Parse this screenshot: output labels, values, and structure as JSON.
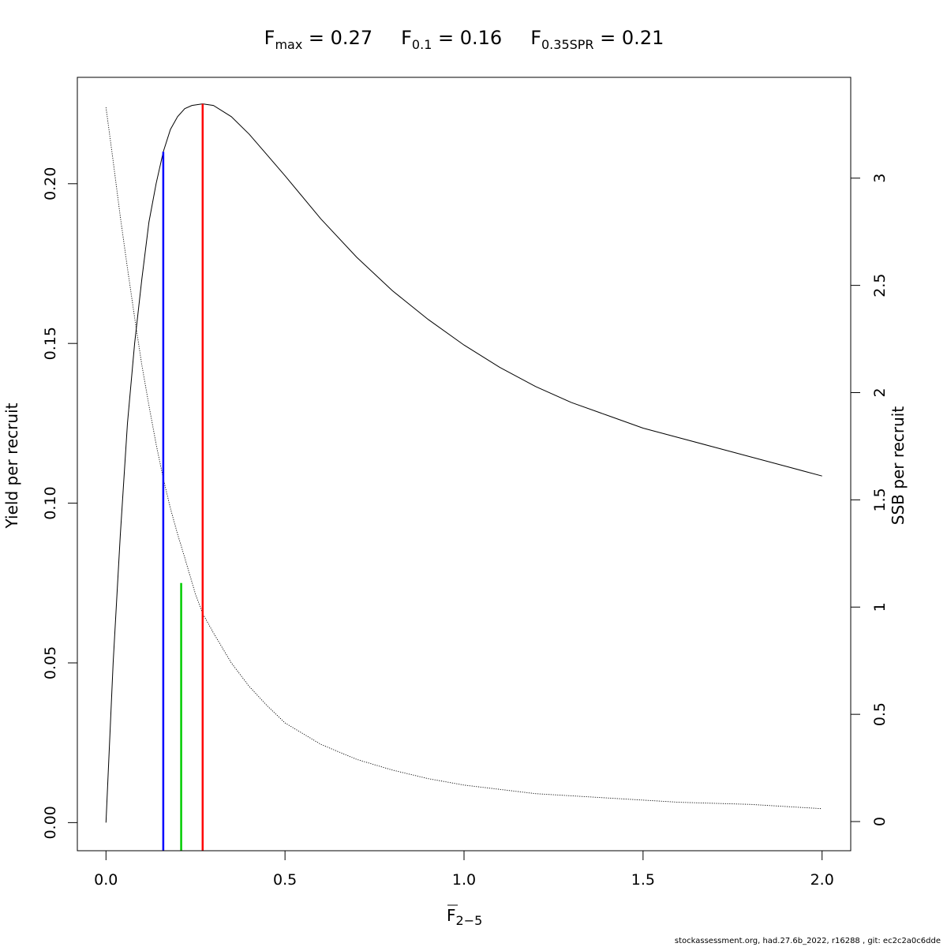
{
  "chart_data": {
    "type": "line",
    "title_parts": [
      {
        "main": "F",
        "sub": "max",
        "value": "= 0.27"
      },
      {
        "main": "F",
        "sub": "0.1",
        "value": "= 0.16"
      },
      {
        "main": "F",
        "sub": "0.35SPR",
        "value": "= 0.21"
      }
    ],
    "xlabel": {
      "main": "F",
      "sub": "2−5",
      "overline": true
    },
    "ylabel_left": "Yield per recruit",
    "ylabel_right": "SSB per recruit",
    "xlim": [
      -0.08,
      2.08
    ],
    "ylim_left": [
      -0.0088,
      0.2333
    ],
    "ylim_right": [
      -0.136,
      3.47
    ],
    "x_ticks": [
      {
        "value": 0.0,
        "label": "0.0"
      },
      {
        "value": 0.5,
        "label": "0.5"
      },
      {
        "value": 1.0,
        "label": "1.0"
      },
      {
        "value": 1.5,
        "label": "1.5"
      },
      {
        "value": 2.0,
        "label": "2.0"
      }
    ],
    "y_left_ticks": [
      {
        "value": 0.0,
        "label": "0.00"
      },
      {
        "value": 0.05,
        "label": "0.05"
      },
      {
        "value": 0.1,
        "label": "0.10"
      },
      {
        "value": 0.15,
        "label": "0.15"
      },
      {
        "value": 0.2,
        "label": "0.20"
      }
    ],
    "y_right_ticks": [
      {
        "value": 0,
        "label": "0"
      },
      {
        "value": 0.5,
        "label": "0.5"
      },
      {
        "value": 1,
        "label": "1"
      },
      {
        "value": 1.5,
        "label": "1.5"
      },
      {
        "value": 2,
        "label": "2"
      },
      {
        "value": 2.5,
        "label": "2.5"
      },
      {
        "value": 3,
        "label": "3"
      }
    ],
    "series": [
      {
        "axis": "left",
        "style": "solid",
        "color": "#000000",
        "x": [
          0.0,
          0.02,
          0.04,
          0.06,
          0.08,
          0.1,
          0.12,
          0.14,
          0.16,
          0.18,
          0.2,
          0.22,
          0.24,
          0.27,
          0.3,
          0.35,
          0.4,
          0.45,
          0.5,
          0.6,
          0.7,
          0.8,
          0.9,
          1.0,
          1.1,
          1.2,
          1.3,
          1.4,
          1.5,
          1.6,
          1.7,
          1.8,
          1.9,
          2.0
        ],
        "y": [
          0.0,
          0.05,
          0.09,
          0.125,
          0.15,
          0.17,
          0.188,
          0.2,
          0.21,
          0.217,
          0.221,
          0.2235,
          0.2245,
          0.225,
          0.2245,
          0.221,
          0.2155,
          0.209,
          0.2025,
          0.189,
          0.177,
          0.1665,
          0.1575,
          0.1495,
          0.1425,
          0.1365,
          0.1315,
          0.1275,
          0.1235,
          0.1205,
          0.1175,
          0.1145,
          0.1115,
          0.1085
        ]
      },
      {
        "axis": "right",
        "style": "dotted",
        "color": "#000000",
        "x": [
          0.0,
          0.02,
          0.04,
          0.06,
          0.08,
          0.1,
          0.12,
          0.14,
          0.16,
          0.18,
          0.2,
          0.22,
          0.25,
          0.27,
          0.3,
          0.35,
          0.4,
          0.45,
          0.5,
          0.6,
          0.7,
          0.8,
          0.9,
          1.0,
          1.2,
          1.4,
          1.6,
          1.8,
          2.0
        ],
        "y": [
          3.33,
          3.08,
          2.82,
          2.58,
          2.35,
          2.13,
          1.94,
          1.76,
          1.6,
          1.46,
          1.34,
          1.23,
          1.06,
          0.97,
          0.88,
          0.74,
          0.63,
          0.54,
          0.46,
          0.36,
          0.29,
          0.24,
          0.2,
          0.17,
          0.13,
          0.11,
          0.09,
          0.08,
          0.06
        ]
      }
    ],
    "reference_lines": [
      {
        "name": "F0.1",
        "x": 0.16,
        "y_top": 0.21,
        "color": "#0000ff"
      },
      {
        "name": "F0.35SPR",
        "x": 0.21,
        "y_top": 0.075,
        "color": "#00cc00"
      },
      {
        "name": "Fmax",
        "x": 0.27,
        "y_top": 0.225,
        "color": "#ff0000"
      }
    ],
    "grid": false
  },
  "footer": "stockassessment.org, had.27.6b_2022, r16288 , git: ec2c2a0c6dde"
}
